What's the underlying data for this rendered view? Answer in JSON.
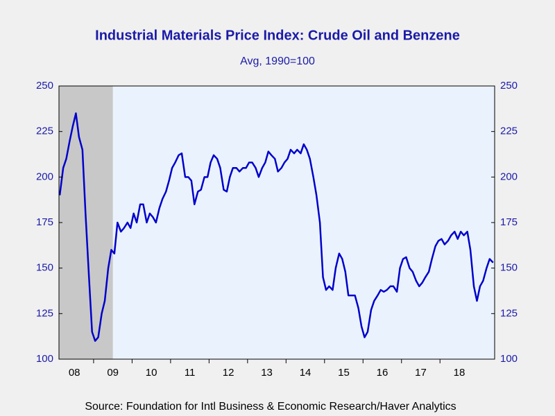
{
  "chart_data": {
    "type": "line",
    "title": "Industrial Materials Price Index: Crude Oil and Benzene",
    "subtitle": "Avg, 1990=100",
    "source": "Source:  Foundation for Intl Business & Economic Research/Haver Analytics",
    "x": [
      2008.12,
      2008.21,
      2008.29,
      2008.38,
      2008.46,
      2008.54,
      2008.62,
      2008.71,
      2008.79,
      2008.88,
      2008.96,
      2009.04,
      2009.12,
      2009.21,
      2009.29,
      2009.38,
      2009.46,
      2009.54,
      2009.62,
      2009.71,
      2009.79,
      2009.88,
      2009.96,
      2010.04,
      2010.12,
      2010.21,
      2010.29,
      2010.38,
      2010.46,
      2010.54,
      2010.62,
      2010.71,
      2010.79,
      2010.88,
      2010.96,
      2011.04,
      2011.12,
      2011.21,
      2011.29,
      2011.38,
      2011.46,
      2011.54,
      2011.62,
      2011.71,
      2011.79,
      2011.88,
      2011.96,
      2012.04,
      2012.12,
      2012.21,
      2012.29,
      2012.38,
      2012.46,
      2012.54,
      2012.62,
      2012.71,
      2012.79,
      2012.88,
      2012.96,
      2013.04,
      2013.12,
      2013.21,
      2013.29,
      2013.38,
      2013.46,
      2013.54,
      2013.62,
      2013.71,
      2013.79,
      2013.88,
      2013.96,
      2014.04,
      2014.12,
      2014.21,
      2014.29,
      2014.38,
      2014.46,
      2014.54,
      2014.62,
      2014.71,
      2014.79,
      2014.88,
      2014.96,
      2015.04,
      2015.12,
      2015.21,
      2015.29,
      2015.38,
      2015.46,
      2015.54,
      2015.62,
      2015.71,
      2015.79,
      2015.88,
      2015.96,
      2016.04,
      2016.12,
      2016.21,
      2016.29,
      2016.38,
      2016.46,
      2016.54,
      2016.62,
      2016.71,
      2016.79,
      2016.88,
      2016.96,
      2017.04,
      2017.12,
      2017.21,
      2017.29,
      2017.38,
      2017.46,
      2017.54,
      2017.62,
      2017.71,
      2017.79,
      2017.88,
      2017.96,
      2018.04,
      2018.12,
      2018.21,
      2018.29,
      2018.38,
      2018.46,
      2018.54,
      2018.62,
      2018.71,
      2018.79,
      2018.88,
      2018.96,
      2019.04,
      2019.12,
      2019.21,
      2019.29,
      2019.38
    ],
    "series": [
      {
        "color": "#0000cc",
        "values": [
          190,
          205,
          210,
          220,
          228,
          235,
          222,
          215,
          180,
          145,
          115,
          110,
          112,
          125,
          132,
          150,
          160,
          158,
          175,
          170,
          172,
          175,
          172,
          180,
          175,
          185,
          185,
          175,
          180,
          178,
          175,
          183,
          188,
          192,
          198,
          205,
          208,
          212,
          213,
          200,
          200,
          198,
          185,
          192,
          193,
          200,
          200,
          208,
          212,
          210,
          205,
          193,
          192,
          200,
          205,
          205,
          203,
          205,
          205,
          208,
          208,
          205,
          200,
          205,
          208,
          214,
          212,
          210,
          203,
          205,
          208,
          210,
          215,
          213,
          215,
          213,
          218,
          215,
          210,
          200,
          190,
          175,
          145,
          138,
          140,
          138,
          150,
          158,
          155,
          148,
          135,
          135,
          135,
          128,
          118,
          112,
          115,
          127,
          132,
          135,
          138,
          137,
          138,
          140,
          140,
          137,
          150,
          155,
          156,
          150,
          148,
          143,
          140,
          142,
          145,
          148,
          155,
          162,
          165,
          166,
          163,
          165,
          168,
          170,
          166,
          170,
          168,
          170,
          160,
          140,
          132,
          140,
          143,
          150,
          155,
          153
        ]
      }
    ],
    "xlim": [
      2008.1,
      2019.42
    ],
    "xticks": [
      {
        "value": 2008,
        "label": "08"
      },
      {
        "value": 2009,
        "label": "09"
      },
      {
        "value": 2010,
        "label": "10"
      },
      {
        "value": 2011,
        "label": "11"
      },
      {
        "value": 2012,
        "label": "12"
      },
      {
        "value": 2013,
        "label": "13"
      },
      {
        "value": 2014,
        "label": "14"
      },
      {
        "value": 2015,
        "label": "15"
      },
      {
        "value": 2016,
        "label": "16"
      },
      {
        "value": 2017,
        "label": "17"
      },
      {
        "value": 2018,
        "label": "18"
      }
    ],
    "ylim": [
      100,
      250
    ],
    "yticks": [
      100,
      125,
      150,
      175,
      200,
      225,
      250
    ],
    "y2lim": [
      100,
      250
    ],
    "y2ticks": [
      100,
      125,
      150,
      175,
      200,
      225,
      250
    ],
    "shaded_ranges": [
      [
        2008.1,
        2009.5
      ]
    ],
    "shade_color": "#c8c8c8"
  }
}
